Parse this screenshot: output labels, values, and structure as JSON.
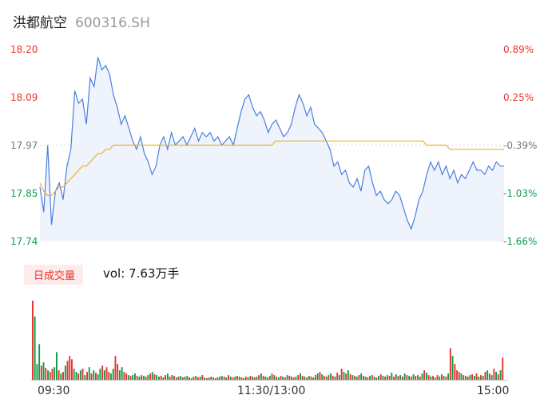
{
  "header": {
    "name": "洪都航空",
    "code": "600316.SH"
  },
  "volume": {
    "tag": "日成交量",
    "text": "vol: 7.63万手"
  },
  "colors": {
    "up": "#e8332e",
    "down": "#0e9c4a",
    "price_line": "#4a7fe0",
    "avg_line": "#f0b030",
    "area": "#eef3fc"
  },
  "chart_data": [
    {
      "type": "line",
      "name": "intraday-price",
      "ylim": [
        17.74,
        18.2
      ],
      "y_ticks_left": [
        "18.20",
        "18.09",
        "17.97",
        "17.85",
        "17.74"
      ],
      "y_ticks_right": [
        "0.89%",
        "0.25%",
        "-0.39%",
        "-1.03%",
        "-1.66%"
      ],
      "x_ticks": [
        "09:30",
        "11:30/13:00",
        "15:00"
      ],
      "x": [
        0,
        2,
        4,
        6,
        8,
        10,
        12,
        14,
        16,
        18,
        20,
        22,
        24,
        26,
        28,
        30,
        32,
        34,
        36,
        38,
        40,
        42,
        44,
        46,
        48,
        50,
        52,
        54,
        56,
        58,
        60,
        62,
        64,
        66,
        68,
        70,
        72,
        74,
        76,
        78,
        80,
        82,
        84,
        86,
        88,
        90,
        92,
        94,
        96,
        98,
        100,
        102,
        104,
        106,
        108,
        110,
        112,
        114,
        116,
        118,
        120,
        122,
        124,
        126,
        128,
        130,
        132,
        134,
        136,
        138,
        140,
        142,
        144,
        146,
        148,
        150,
        152,
        154,
        156,
        158,
        160,
        162,
        164,
        166,
        168,
        170,
        172,
        174,
        176,
        178,
        180,
        182,
        184,
        186,
        188,
        190,
        192,
        194,
        196,
        198,
        200,
        202,
        204,
        206,
        208,
        210,
        212,
        214,
        216,
        218,
        220,
        222,
        224,
        226,
        228,
        230,
        232,
        234,
        236,
        238,
        240
      ],
      "price": [
        17.87,
        17.81,
        17.97,
        17.78,
        17.86,
        17.88,
        17.84,
        17.92,
        17.96,
        18.1,
        18.07,
        18.08,
        18.02,
        18.13,
        18.11,
        18.18,
        18.15,
        18.16,
        18.14,
        18.09,
        18.06,
        18.02,
        18.04,
        18.01,
        17.98,
        17.96,
        17.99,
        17.95,
        17.93,
        17.9,
        17.92,
        17.97,
        17.99,
        17.96,
        18.0,
        17.97,
        17.98,
        17.99,
        17.97,
        17.99,
        18.01,
        17.98,
        18.0,
        17.99,
        18.0,
        17.98,
        17.99,
        17.97,
        17.98,
        17.99,
        17.97,
        18.01,
        18.05,
        18.08,
        18.09,
        18.06,
        18.04,
        18.05,
        18.03,
        18.0,
        18.02,
        18.03,
        18.01,
        17.99,
        18.0,
        18.02,
        18.06,
        18.09,
        18.07,
        18.04,
        18.06,
        18.02,
        18.01,
        18.0,
        17.98,
        17.96,
        17.92,
        17.93,
        17.9,
        17.91,
        17.88,
        17.87,
        17.89,
        17.86,
        17.91,
        17.92,
        17.88,
        17.85,
        17.86,
        17.84,
        17.83,
        17.84,
        17.86,
        17.85,
        17.82,
        17.79,
        17.77,
        17.8,
        17.84,
        17.86,
        17.9,
        17.93,
        17.91,
        17.93,
        17.9,
        17.92,
        17.89,
        17.91,
        17.88,
        17.9,
        17.89,
        17.91,
        17.93,
        17.91,
        17.91,
        17.9,
        17.92,
        17.91,
        17.93,
        17.92,
        17.92
      ],
      "avg": [
        17.88,
        17.86,
        17.85,
        17.85,
        17.86,
        17.87,
        17.87,
        17.88,
        17.89,
        17.9,
        17.91,
        17.92,
        17.92,
        17.93,
        17.94,
        17.95,
        17.95,
        17.96,
        17.96,
        17.97,
        17.97,
        17.97,
        17.97,
        17.97,
        17.97,
        17.97,
        17.97,
        17.97,
        17.97,
        17.97,
        17.97,
        17.97,
        17.97,
        17.97,
        17.97,
        17.97,
        17.97,
        17.97,
        17.97,
        17.97,
        17.97,
        17.97,
        17.97,
        17.97,
        17.97,
        17.97,
        17.97,
        17.97,
        17.97,
        17.97,
        17.97,
        17.97,
        17.97,
        17.97,
        17.97,
        17.97,
        17.97,
        17.97,
        17.97,
        17.97,
        17.97,
        17.98,
        17.98,
        17.98,
        17.98,
        17.98,
        17.98,
        17.98,
        17.98,
        17.98,
        17.98,
        17.98,
        17.98,
        17.98,
        17.98,
        17.98,
        17.98,
        17.98,
        17.98,
        17.98,
        17.98,
        17.98,
        17.98,
        17.98,
        17.98,
        17.98,
        17.98,
        17.98,
        17.98,
        17.98,
        17.98,
        17.98,
        17.98,
        17.98,
        17.98,
        17.98,
        17.98,
        17.98,
        17.98,
        17.98,
        17.97,
        17.97,
        17.97,
        17.97,
        17.97,
        17.97,
        17.96,
        17.96,
        17.96,
        17.96,
        17.96,
        17.96,
        17.96,
        17.96,
        17.96,
        17.96,
        17.96,
        17.96,
        17.96,
        17.96,
        17.96
      ]
    },
    {
      "type": "bar",
      "name": "intraday-volume",
      "values": [
        100,
        80,
        20,
        45,
        18,
        22,
        15,
        12,
        10,
        14,
        16,
        35,
        12,
        8,
        10,
        18,
        24,
        30,
        26,
        14,
        10,
        8,
        12,
        14,
        6,
        10,
        16,
        8,
        12,
        9,
        7,
        14,
        18,
        12,
        16,
        10,
        8,
        14,
        30,
        20,
        12,
        16,
        10,
        8,
        6,
        5,
        6,
        8,
        5,
        4,
        6,
        5,
        4,
        6,
        8,
        10,
        7,
        6,
        4,
        5,
        3,
        6,
        8,
        4,
        6,
        5,
        3,
        4,
        5,
        3,
        4,
        5,
        3,
        2,
        4,
        5,
        3,
        4,
        6,
        3,
        2,
        3,
        4,
        3,
        2,
        3,
        4,
        5,
        4,
        3,
        6,
        4,
        3,
        4,
        5,
        4,
        3,
        2,
        4,
        3,
        5,
        4,
        3,
        4,
        6,
        8,
        5,
        4,
        3,
        5,
        8,
        6,
        4,
        3,
        5,
        4,
        3,
        6,
        5,
        4,
        3,
        4,
        6,
        8,
        5,
        4,
        3,
        5,
        4,
        3,
        6,
        8,
        10,
        7,
        5,
        4,
        6,
        8,
        5,
        4,
        9,
        6,
        14,
        10,
        8,
        12,
        7,
        6,
        5,
        4,
        6,
        8,
        5,
        4,
        3,
        5,
        6,
        4,
        3,
        5,
        7,
        5,
        4,
        6,
        5,
        9,
        4,
        7,
        5,
        6,
        4,
        8,
        6,
        5,
        4,
        7,
        5,
        6,
        4,
        8,
        12,
        9,
        6,
        4,
        5,
        3,
        6,
        4,
        7,
        5,
        4,
        8,
        40,
        30,
        20,
        12,
        10,
        8,
        6,
        5,
        4,
        6,
        7,
        5,
        8,
        4,
        6,
        5,
        10,
        12,
        8,
        6,
        14,
        10,
        7,
        12,
        28
      ],
      "up": [
        true,
        false,
        false,
        false,
        true,
        false,
        true,
        false,
        true,
        true,
        false,
        false,
        true,
        false,
        true,
        false,
        true,
        true,
        true,
        false,
        false,
        true,
        false,
        true,
        false,
        true,
        false,
        true,
        false,
        true,
        false,
        false,
        true,
        false,
        true,
        true,
        false,
        false,
        true,
        true,
        false,
        false,
        true,
        true,
        false,
        true,
        false,
        false,
        true,
        false,
        true,
        false,
        true,
        false,
        true,
        false,
        true,
        false,
        false,
        true,
        false,
        true,
        false,
        true,
        false,
        true,
        false,
        true,
        false,
        true,
        false,
        false,
        true,
        false,
        true,
        false,
        true,
        false,
        true,
        false,
        true,
        false,
        true,
        false,
        true,
        false,
        true,
        false,
        true,
        false,
        true,
        false,
        true,
        false,
        true,
        false,
        true,
        false,
        true,
        false,
        true,
        false,
        true,
        false,
        true,
        false,
        true,
        false,
        true,
        false,
        true,
        false,
        true,
        false,
        true,
        false,
        true,
        false,
        true,
        false,
        true,
        false,
        true,
        false,
        true,
        false,
        true,
        false,
        true,
        false,
        true,
        false,
        true,
        false,
        true,
        false,
        true,
        false,
        true,
        false,
        true,
        false,
        true,
        false,
        true,
        false,
        true,
        false,
        true,
        false,
        true,
        false,
        true,
        false,
        true,
        false,
        true,
        false,
        true,
        false,
        true,
        false,
        true,
        false,
        true,
        false,
        true,
        false,
        true,
        false,
        true,
        false,
        true,
        false,
        true,
        false,
        true,
        false,
        true,
        false,
        true,
        false,
        true,
        false,
        true,
        false,
        true,
        false,
        true,
        false,
        true,
        false,
        true,
        false,
        true,
        true,
        true,
        false,
        true,
        false,
        true,
        false,
        true,
        false,
        true,
        false,
        true,
        false,
        true,
        false,
        true,
        false,
        true,
        false,
        true,
        false,
        true,
        false,
        true,
        false,
        true,
        true
      ]
    }
  ]
}
